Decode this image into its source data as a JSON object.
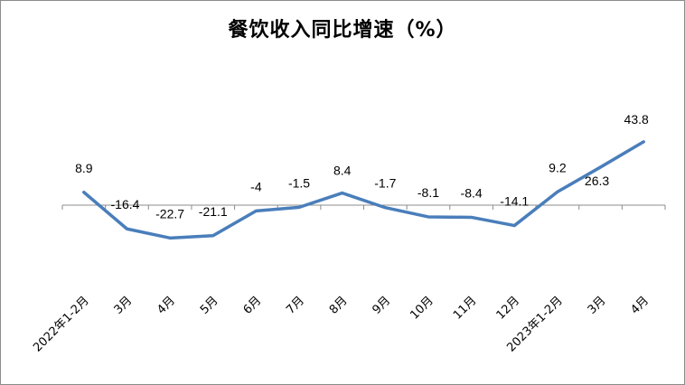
{
  "chart_data": {
    "type": "line",
    "title": "餐饮收入同比增速（%）",
    "categories": [
      "2022年1-2月",
      "3月",
      "4月",
      "5月",
      "6月",
      "7月",
      "8月",
      "9月",
      "10月",
      "11月",
      "12月",
      "2023年1-2月",
      "3月",
      "4月"
    ],
    "values": [
      8.9,
      -16.4,
      -22.7,
      -21.1,
      -4,
      -1.5,
      8.4,
      -1.7,
      -8.1,
      -8.4,
      -14.1,
      9.2,
      26.3,
      43.8
    ],
    "value_labels": [
      "8.9",
      "-16.4",
      "-22.7",
      "-21.1",
      "-4",
      "-1.5",
      "8.4",
      "-1.7",
      "-8.1",
      "-8.4",
      "-14.1",
      "9.2",
      "26.3",
      "43.8"
    ],
    "xlabel": "",
    "ylabel": "",
    "ylim": [
      -30,
      50
    ],
    "grid": false,
    "legend": "none",
    "line_color": "#4a7ebb"
  }
}
